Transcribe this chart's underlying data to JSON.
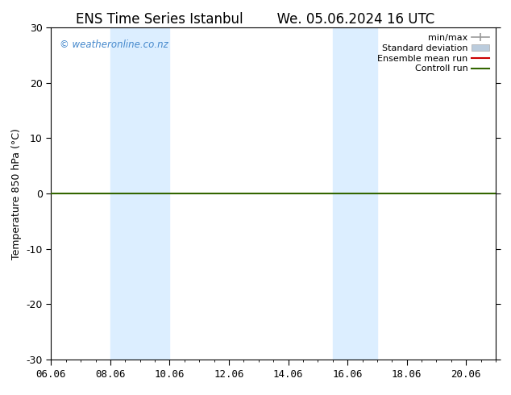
{
  "title_left": "ENS Time Series Istanbul",
  "title_right": "We. 05.06.2024 16 UTC",
  "ylabel": "Temperature 850 hPa (°C)",
  "ylim": [
    -30,
    30
  ],
  "yticks": [
    -30,
    -20,
    -10,
    0,
    10,
    20,
    30
  ],
  "xtick_labels": [
    "06.06",
    "08.06",
    "10.06",
    "12.06",
    "14.06",
    "16.06",
    "18.06",
    "20.06"
  ],
  "xtick_positions": [
    0,
    2,
    4,
    6,
    8,
    10,
    12,
    14
  ],
  "xlim": [
    0,
    15
  ],
  "blue_band_regions": [
    {
      "x_start": 2.0,
      "x_end": 4.0
    },
    {
      "x_start": 9.5,
      "x_end": 11.0
    }
  ],
  "blue_band_color": "#dceeff",
  "control_run_color": "#336600",
  "ensemble_mean_color": "#cc0000",
  "watermark": "© weatheronline.co.nz",
  "watermark_color": "#4488cc",
  "background_color": "#ffffff",
  "legend_items": [
    {
      "label": "min/max",
      "color": "#999999",
      "lw": 1.2
    },
    {
      "label": "Standard deviation",
      "color": "#bbccdd",
      "lw": 6
    },
    {
      "label": "Ensemble mean run",
      "color": "#cc0000",
      "lw": 1.5
    },
    {
      "label": "Controll run",
      "color": "#336600",
      "lw": 1.5
    }
  ],
  "title_fontsize": 12,
  "axis_label_fontsize": 9,
  "tick_fontsize": 9,
  "legend_fontsize": 8
}
